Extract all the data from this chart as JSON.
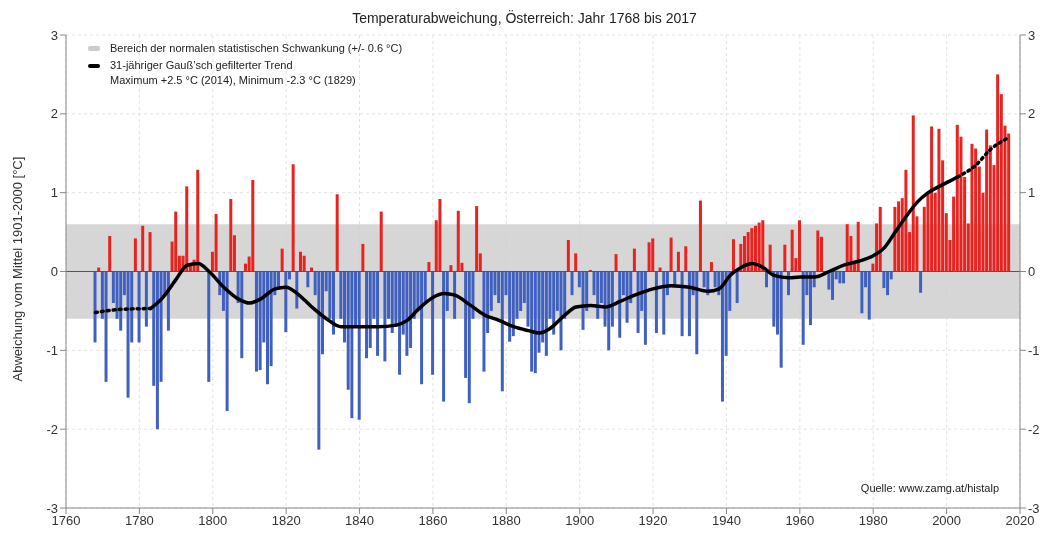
{
  "chart_data": {
    "type": "bar",
    "title": "Temperaturabweichung, Österreich: Jahr 1768 bis 2017",
    "ylabel": "Abweichung vom Mittel 1901-2000 [°C]",
    "x": [
      1768,
      1769,
      1770,
      1771,
      1772,
      1773,
      1774,
      1775,
      1776,
      1777,
      1778,
      1779,
      1780,
      1781,
      1782,
      1783,
      1784,
      1785,
      1786,
      1787,
      1788,
      1789,
      1790,
      1791,
      1792,
      1793,
      1794,
      1795,
      1796,
      1797,
      1798,
      1799,
      1800,
      1801,
      1802,
      1803,
      1804,
      1805,
      1806,
      1807,
      1808,
      1809,
      1810,
      1811,
      1812,
      1813,
      1814,
      1815,
      1816,
      1817,
      1818,
      1819,
      1820,
      1821,
      1822,
      1823,
      1824,
      1825,
      1826,
      1827,
      1828,
      1829,
      1830,
      1831,
      1832,
      1833,
      1834,
      1835,
      1836,
      1837,
      1838,
      1839,
      1840,
      1841,
      1842,
      1843,
      1844,
      1845,
      1846,
      1847,
      1848,
      1849,
      1850,
      1851,
      1852,
      1853,
      1854,
      1855,
      1856,
      1857,
      1858,
      1859,
      1860,
      1861,
      1862,
      1863,
      1864,
      1865,
      1866,
      1867,
      1868,
      1869,
      1870,
      1871,
      1872,
      1873,
      1874,
      1875,
      1876,
      1877,
      1878,
      1879,
      1880,
      1881,
      1882,
      1883,
      1884,
      1885,
      1886,
      1887,
      1888,
      1889,
      1890,
      1891,
      1892,
      1893,
      1894,
      1895,
      1896,
      1897,
      1898,
      1899,
      1900,
      1901,
      1902,
      1903,
      1904,
      1905,
      1906,
      1907,
      1908,
      1909,
      1910,
      1911,
      1912,
      1913,
      1914,
      1915,
      1916,
      1917,
      1918,
      1919,
      1920,
      1921,
      1922,
      1923,
      1924,
      1925,
      1926,
      1927,
      1928,
      1929,
      1930,
      1931,
      1932,
      1933,
      1934,
      1935,
      1936,
      1937,
      1938,
      1939,
      1940,
      1941,
      1942,
      1943,
      1944,
      1945,
      1946,
      1947,
      1948,
      1949,
      1950,
      1951,
      1952,
      1953,
      1954,
      1955,
      1956,
      1957,
      1958,
      1959,
      1960,
      1961,
      1962,
      1963,
      1964,
      1965,
      1966,
      1967,
      1968,
      1969,
      1970,
      1971,
      1972,
      1973,
      1974,
      1975,
      1976,
      1977,
      1978,
      1979,
      1980,
      1981,
      1982,
      1983,
      1984,
      1985,
      1986,
      1987,
      1988,
      1989,
      1990,
      1991,
      1992,
      1993,
      1994,
      1995,
      1996,
      1997,
      1998,
      1999,
      2000,
      2001,
      2002,
      2003,
      2004,
      2005,
      2006,
      2007,
      2008,
      2009,
      2010,
      2011,
      2012,
      2013,
      2014,
      2015,
      2016,
      2017
    ],
    "series": [
      {
        "values": [
          -0.9,
          0.05,
          -0.6,
          -1.4,
          0.45,
          -0.4,
          -0.6,
          -0.75,
          -0.3,
          -1.6,
          -0.9,
          0.42,
          -0.9,
          0.58,
          -0.7,
          0.5,
          -1.45,
          -2.0,
          -1.4,
          -0.3,
          -0.75,
          0.38,
          0.76,
          0.2,
          0.2,
          1.08,
          0.1,
          0.15,
          1.29,
          null,
          null,
          -1.4,
          0.25,
          0.73,
          -0.3,
          -0.5,
          -1.77,
          0.92,
          0.46,
          -0.4,
          -1.1,
          0.1,
          0.19,
          1.16,
          -1.27,
          -1.25,
          -0.9,
          -1.43,
          -1.2,
          -0.3,
          -0.2,
          0.29,
          -0.77,
          -0.1,
          1.36,
          -0.47,
          0.25,
          0.2,
          -0.2,
          0.05,
          -0.3,
          -2.26,
          -1.05,
          -0.25,
          -0.6,
          -0.8,
          0.98,
          -0.6,
          -0.9,
          -1.5,
          -1.86,
          -0.7,
          -1.88,
          0.35,
          -1.1,
          -0.97,
          -0.6,
          -1.07,
          0.76,
          -1.14,
          -0.6,
          -0.78,
          -0.7,
          -1.31,
          -0.8,
          -1.07,
          -0.97,
          -0.6,
          -0.5,
          -1.43,
          -0.4,
          0.12,
          -1.31,
          0.65,
          0.92,
          -1.65,
          -0.5,
          0.08,
          -0.6,
          0.77,
          0.11,
          -1.35,
          -1.67,
          -0.6,
          0.83,
          0.23,
          -1.27,
          -0.78,
          -0.5,
          -0.3,
          -0.4,
          -1.52,
          -0.3,
          -0.89,
          -0.82,
          -0.6,
          -0.5,
          -0.4,
          -0.7,
          -1.27,
          -1.29,
          -1.03,
          -0.9,
          -1.07,
          -0.6,
          -0.8,
          -0.5,
          -1.0,
          -0.6,
          0.4,
          -0.3,
          0.23,
          -0.2,
          -0.74,
          -0.5,
          0.02,
          -0.3,
          -0.6,
          -0.4,
          -0.7,
          -1.0,
          -0.7,
          0.22,
          -0.84,
          -0.3,
          -0.65,
          -0.4,
          0.29,
          -0.78,
          -0.5,
          -0.93,
          0.37,
          0.42,
          -0.78,
          0.05,
          -0.8,
          -0.3,
          0.43,
          -0.2,
          0.25,
          -0.82,
          0.32,
          -0.82,
          -0.3,
          -1.05,
          0.9,
          -0.2,
          -0.3,
          0.12,
          -0.2,
          -0.3,
          -1.65,
          -1.07,
          -0.5,
          0.41,
          -0.4,
          0.35,
          0.45,
          0.5,
          0.55,
          0.58,
          0.62,
          0.65,
          -0.2,
          0.34,
          -0.7,
          -0.8,
          -1.22,
          0.34,
          -0.3,
          0.53,
          0.17,
          0.65,
          -0.93,
          -0.3,
          -0.68,
          -0.2,
          0.52,
          0.44,
          null,
          -0.23,
          -0.36,
          -0.1,
          -0.15,
          -0.15,
          0.6,
          0.45,
          0.1,
          0.63,
          -0.53,
          -0.2,
          -0.61,
          0.1,
          0.61,
          0.82,
          -0.21,
          -0.3,
          -0.1,
          0.82,
          0.89,
          0.93,
          1.29,
          0.5,
          1.98,
          0.7,
          -0.27,
          0.82,
          1.0,
          1.84,
          1.0,
          1.81,
          1.41,
          0.74,
          0.4,
          0.95,
          1.86,
          1.71,
          1.2,
          0.61,
          1.62,
          1.56,
          1.33,
          1.0,
          1.8,
          1.6,
          1.35,
          2.5,
          2.25,
          1.85,
          1.75
        ],
        "colors": [
          "#4060c0",
          "#e8231f",
          "#4060c0",
          "#4060c0",
          "#e8231f",
          "#4060c0",
          "#4060c0",
          "#4060c0",
          "#4060c0",
          "#4060c0",
          "#4060c0",
          "#e8231f",
          "#4060c0",
          "#e8231f",
          "#4060c0",
          "#e8231f",
          "#4060c0",
          "#4060c0",
          "#4060c0",
          "#4060c0",
          "#4060c0",
          "#e8231f",
          "#e8231f",
          "#e8231f",
          "#e8231f",
          "#e8231f",
          "#e8231f",
          "#e8231f",
          "#e8231f",
          "#e8231f",
          "#e8231f",
          "#4060c0",
          "#e8231f",
          "#e8231f",
          "#4060c0",
          "#4060c0",
          "#4060c0",
          "#e8231f",
          "#e8231f",
          "#4060c0",
          "#4060c0",
          "#e8231f",
          "#e8231f",
          "#e8231f",
          "#4060c0",
          "#4060c0",
          "#4060c0",
          "#4060c0",
          "#4060c0",
          "#4060c0",
          "#4060c0",
          "#e8231f",
          "#4060c0",
          "#4060c0",
          "#e8231f",
          "#4060c0",
          "#e8231f",
          "#e8231f",
          "#4060c0",
          "#e8231f",
          "#4060c0",
          "#4060c0",
          "#4060c0",
          "#4060c0",
          "#4060c0",
          "#4060c0",
          "#e8231f",
          "#4060c0",
          "#4060c0",
          "#4060c0",
          "#4060c0",
          "#4060c0",
          "#4060c0",
          "#e8231f",
          "#4060c0",
          "#4060c0",
          "#4060c0",
          "#4060c0",
          "#e8231f",
          "#4060c0",
          "#4060c0",
          "#4060c0",
          "#4060c0",
          "#4060c0",
          "#4060c0",
          "#4060c0",
          "#4060c0",
          "#4060c0",
          "#4060c0",
          "#4060c0",
          "#4060c0",
          "#e8231f",
          "#4060c0",
          "#e8231f",
          "#e8231f",
          "#4060c0",
          "#4060c0",
          "#e8231f",
          "#4060c0",
          "#e8231f",
          "#e8231f",
          "#4060c0",
          "#4060c0",
          "#4060c0",
          "#e8231f",
          "#e8231f",
          "#4060c0",
          "#4060c0",
          "#4060c0",
          "#4060c0",
          "#4060c0",
          "#4060c0",
          "#4060c0",
          "#4060c0",
          "#4060c0",
          "#4060c0",
          "#4060c0",
          "#4060c0",
          "#4060c0",
          "#4060c0",
          "#4060c0",
          "#4060c0",
          "#4060c0",
          "#4060c0",
          "#4060c0",
          "#4060c0",
          "#4060c0",
          "#4060c0",
          "#4060c0",
          "#e8231f",
          "#4060c0",
          "#e8231f",
          "#4060c0",
          "#4060c0",
          "#4060c0",
          "#e8231f",
          "#4060c0",
          "#4060c0",
          "#4060c0",
          "#4060c0",
          "#4060c0",
          "#4060c0",
          "#e8231f",
          "#4060c0",
          "#4060c0",
          "#4060c0",
          "#4060c0",
          "#e8231f",
          "#4060c0",
          "#4060c0",
          "#4060c0",
          "#e8231f",
          "#e8231f",
          "#4060c0",
          "#e8231f",
          "#4060c0",
          "#4060c0",
          "#e8231f",
          "#4060c0",
          "#e8231f",
          "#4060c0",
          "#e8231f",
          "#4060c0",
          "#4060c0",
          "#4060c0",
          "#e8231f",
          "#4060c0",
          "#4060c0",
          "#e8231f",
          "#4060c0",
          "#4060c0",
          "#4060c0",
          "#4060c0",
          "#4060c0",
          "#e8231f",
          "#4060c0",
          "#e8231f",
          "#e8231f",
          "#e8231f",
          "#e8231f",
          "#e8231f",
          "#e8231f",
          "#e8231f",
          "#4060c0",
          "#e8231f",
          "#4060c0",
          "#4060c0",
          "#4060c0",
          "#e8231f",
          "#4060c0",
          "#e8231f",
          "#e8231f",
          "#e8231f",
          "#4060c0",
          "#4060c0",
          "#4060c0",
          "#4060c0",
          "#e8231f",
          "#e8231f",
          "#4060c0",
          "#4060c0",
          "#4060c0",
          "#4060c0",
          "#4060c0",
          "#4060c0",
          "#e8231f",
          "#e8231f",
          "#e8231f",
          "#e8231f",
          "#4060c0",
          "#4060c0",
          "#4060c0",
          "#e8231f",
          "#e8231f",
          "#e8231f",
          "#4060c0",
          "#4060c0",
          "#4060c0",
          "#e8231f",
          "#e8231f",
          "#e8231f",
          "#e8231f",
          "#e8231f",
          "#e8231f",
          "#e8231f",
          "#4060c0",
          "#e8231f",
          "#e8231f",
          "#e8231f",
          "#e8231f",
          "#e8231f",
          "#e8231f",
          "#e8231f",
          "#e8231f",
          "#e8231f",
          "#e8231f",
          "#e8231f",
          "#e8231f",
          "#e8231f",
          "#e8231f",
          "#e8231f",
          "#e8231f",
          "#e8231f",
          "#e8231f",
          "#e8231f",
          "#e8231f",
          "#e8231f",
          "#e8231f",
          "#e8231f",
          "#e8231f"
        ]
      },
      {
        "type": "line",
        "name": "31-jähriger Gauß’sch gefilterter Trend",
        "color": "#000000",
        "line_style": "solid",
        "x": [
          1783,
          1786,
          1790,
          1793,
          1796,
          1799,
          1803,
          1807,
          1810,
          1813,
          1817,
          1820,
          1823,
          1827,
          1831,
          1835,
          1840,
          1845,
          1850,
          1853,
          1856,
          1860,
          1863,
          1866,
          1870,
          1874,
          1878,
          1882,
          1886,
          1889,
          1892,
          1896,
          1899,
          1903,
          1907,
          1911,
          1915,
          1920,
          1925,
          1930,
          1935,
          1938,
          1941,
          1944,
          1947,
          1950,
          1953,
          1957,
          1960,
          1964,
          1968,
          1972,
          1976,
          1980,
          1983,
          1986,
          1989,
          1992,
          1995,
          1998,
          2001,
          2003
        ],
        "values": [
          -0.47,
          -0.35,
          -0.1,
          0.08,
          0.1,
          0.0,
          -0.2,
          -0.35,
          -0.4,
          -0.35,
          -0.22,
          -0.2,
          -0.28,
          -0.45,
          -0.6,
          -0.7,
          -0.7,
          -0.7,
          -0.68,
          -0.62,
          -0.48,
          -0.33,
          -0.28,
          -0.3,
          -0.42,
          -0.55,
          -0.62,
          -0.7,
          -0.75,
          -0.78,
          -0.72,
          -0.55,
          -0.45,
          -0.43,
          -0.45,
          -0.38,
          -0.3,
          -0.22,
          -0.18,
          -0.2,
          -0.25,
          -0.22,
          -0.05,
          0.05,
          0.1,
          0.05,
          -0.05,
          -0.08,
          -0.07,
          -0.07,
          0.0,
          0.08,
          0.13,
          0.2,
          0.3,
          0.5,
          0.7,
          0.88,
          1.0,
          1.08,
          1.15,
          1.2
        ]
      },
      {
        "type": "line",
        "color": "#000000",
        "line_style": "dotted",
        "x": [
          1768,
          1775,
          1783
        ],
        "values": [
          -0.52,
          -0.48,
          -0.47
        ]
      },
      {
        "type": "line",
        "color": "#000000",
        "line_style": "dotted",
        "x": [
          2003,
          2008,
          2012,
          2017
        ],
        "values": [
          1.2,
          1.35,
          1.55,
          1.7
        ]
      }
    ],
    "bands": [
      {
        "axis": "y",
        "from": -0.6,
        "to": 0.6,
        "label": "Bereich der normalen statistischen Schwankung (+/- 0.6 °C)",
        "color": "#cccccc"
      }
    ],
    "ref_lines": [
      {
        "axis": "y",
        "value": 0,
        "color": "#555555"
      }
    ],
    "annotations": [
      "Maximum +2.5 °C (2014), Minimum -2.3 °C (1829)",
      "Quelle: www.zamg.at/histalp"
    ],
    "xlim": [
      1760,
      2020
    ],
    "xticks": [
      1760,
      1780,
      1800,
      1820,
      1840,
      1860,
      1880,
      1900,
      1920,
      1940,
      1960,
      1980,
      2000,
      2020
    ],
    "ylim": [
      -3,
      3
    ],
    "yticks": [
      -3,
      -2,
      -1,
      0,
      1,
      2,
      3
    ],
    "y2lim": [
      -3,
      3
    ],
    "y2ticks": [
      -3,
      -2,
      -1,
      0,
      1,
      2,
      3
    ],
    "grid": true,
    "legend": "top left",
    "marker": "none"
  }
}
